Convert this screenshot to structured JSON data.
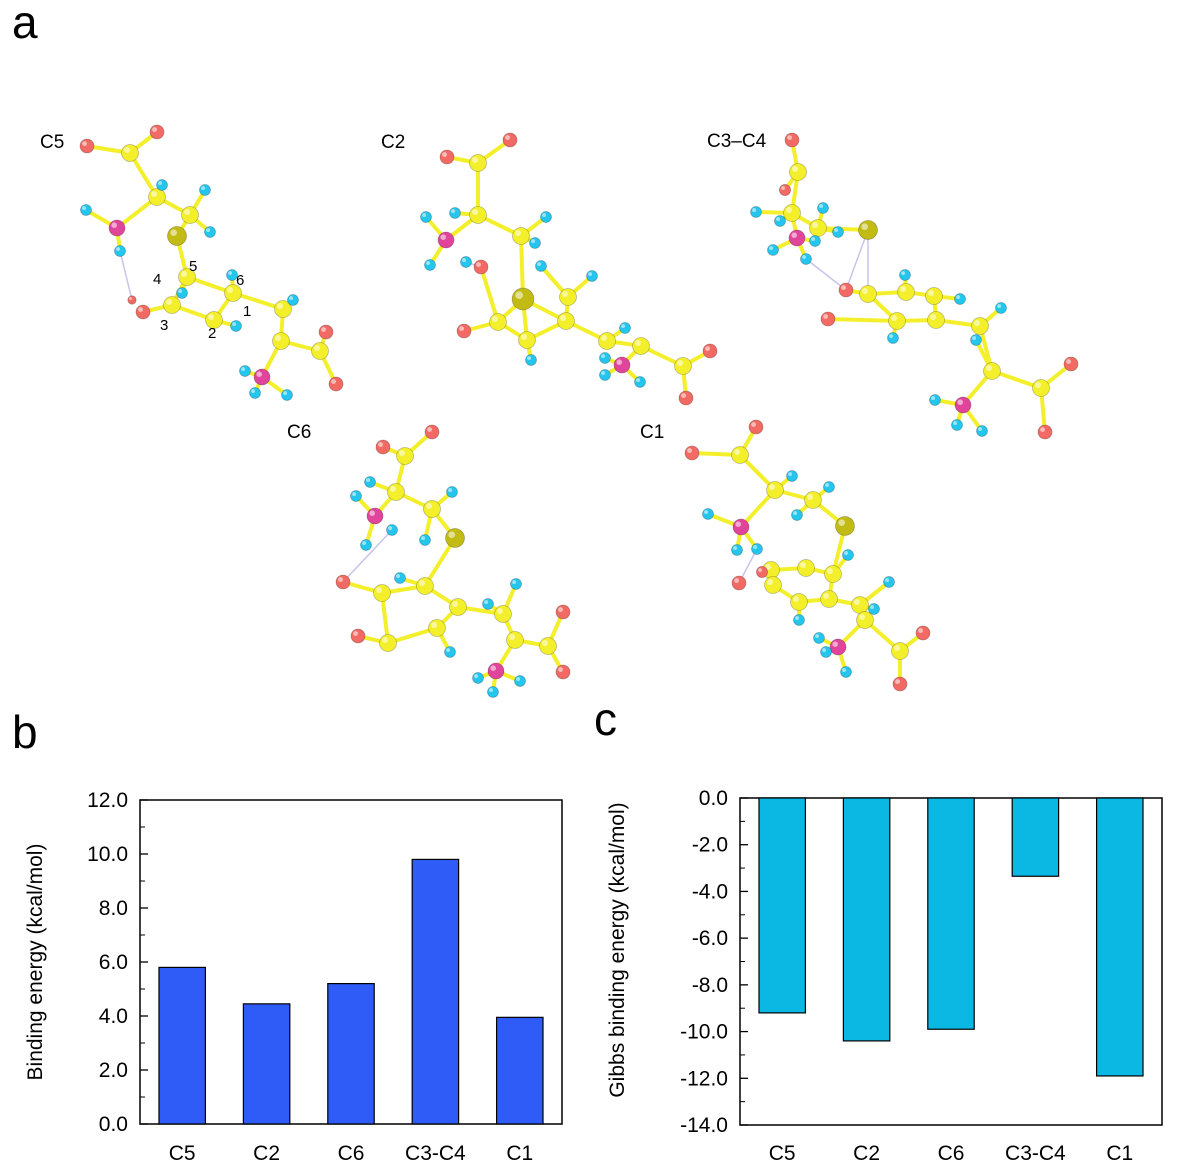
{
  "figure": {
    "panel_labels": {
      "a": "a",
      "b": "b",
      "c": "c"
    }
  },
  "panel_a": {
    "molecules": [
      {
        "label": "C5",
        "atom_numbers": [
          "1",
          "2",
          "3",
          "4",
          "5",
          "6"
        ]
      },
      {
        "label": "C2"
      },
      {
        "label": "C3–C4"
      },
      {
        "label": "C6"
      },
      {
        "label": "C1"
      }
    ],
    "atom_colors": {
      "C": "#f4ef2b",
      "H": "#25c6ee",
      "O": "#f26a63",
      "N": "#e0449b",
      "S": "#c2bb14",
      "bond": "#f4ef2b",
      "hbond": "#c9c4ea"
    }
  },
  "chart_data": [
    {
      "type": "bar",
      "panel": "b",
      "title": "",
      "xlabel": "",
      "ylabel": "Binding energy (kcal/mol)",
      "categories": [
        "C5",
        "C2",
        "C6",
        "C3-C4",
        "C1"
      ],
      "values": [
        5.8,
        4.45,
        5.2,
        9.8,
        3.95
      ],
      "ylim": [
        0.0,
        12.0
      ],
      "yticks": [
        "0.0",
        "2.0",
        "4.0",
        "6.0",
        "8.0",
        "10.0",
        "12.0"
      ],
      "ytick_values": [
        0,
        2,
        4,
        6,
        8,
        10,
        12
      ],
      "color": "#2f5cf7",
      "grid": false
    },
    {
      "type": "bar",
      "panel": "c",
      "title": "",
      "xlabel": "",
      "ylabel": "Gibbs binding energy (kcal/mol)",
      "categories": [
        "C5",
        "C2",
        "C6",
        "C3-C4",
        "C1"
      ],
      "values": [
        -9.2,
        -10.4,
        -9.9,
        -3.35,
        -11.9
      ],
      "ylim": [
        -14.0,
        0.0
      ],
      "yticks": [
        "0.0",
        "-2.0",
        "-4.0",
        "-6.0",
        "-8.0",
        "-10.0",
        "-12.0",
        "-14.0"
      ],
      "ytick_values": [
        0,
        -2,
        -4,
        -6,
        -8,
        -10,
        -12,
        -14
      ],
      "color": "#0ab8e3",
      "grid": false
    }
  ]
}
